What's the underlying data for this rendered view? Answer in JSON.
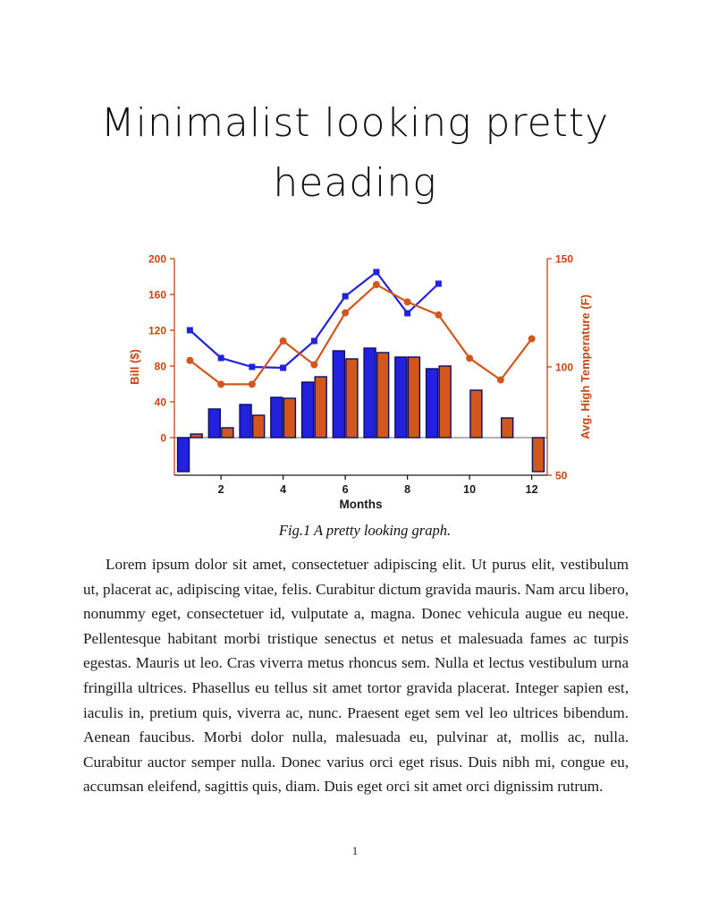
{
  "document": {
    "title_line1": "Minimalist looking pretty",
    "title_line2": "heading",
    "figure_caption": "Fig.1 A pretty looking graph.",
    "paragraph": "Lorem ipsum dolor sit amet, consectetuer adipiscing elit. Ut purus elit, vestibulum ut, placerat ac, adipiscing vitae, felis. Curabitur dictum gravida mauris. Nam arcu libero, nonummy eget, consectetuer id, vulputate a, magna. Donec vehicula augue eu neque. Pellentesque habitant morbi tristique senectus et netus et malesuada fames ac turpis egestas. Mauris ut leo. Cras viverra metus rhoncus sem. Nulla et lectus vestibulum urna fringilla ultrices. Phasellus eu tellus sit amet tortor gravida placerat. Integer sapien est, iaculis in, pretium quis, viverra ac, nunc. Praesent eget sem vel leo ultrices bibendum. Aenean faucibus. Morbi dolor nulla, malesuada eu, pulvinar at, mollis ac, nulla. Curabitur auctor semper nulla. Donec varius orci eget risus. Duis nibh mi, congue eu, accumsan eleifend, sagittis quis, diam. Duis eget orci sit amet orci dignissim rutrum.",
    "page_number": "1"
  },
  "chart_data": {
    "type": "bar",
    "description": "Grouped bar chart with two overlaid marker lines and dual y-axes",
    "title": "",
    "x_label": "Months",
    "months": [
      1,
      2,
      3,
      4,
      5,
      6,
      7,
      8,
      9,
      10,
      11,
      12
    ],
    "x_ticks": [
      2,
      4,
      6,
      8,
      10,
      12
    ],
    "x_range": [
      0.5,
      12.5
    ],
    "left_axis": {
      "label": "Bill ($)",
      "ticks": [
        0,
        40,
        80,
        120,
        160,
        200
      ],
      "range": [
        -42,
        200
      ],
      "color": "#C84514"
    },
    "right_axis": {
      "label": "Avg. High Temperature (F)",
      "ticks": [
        50,
        100,
        150
      ],
      "range": [
        50,
        150
      ],
      "color": "#C84514"
    },
    "series": [
      {
        "name": "electricity-bill-bars-blue",
        "type": "bar",
        "axis": "left",
        "color": "#2121DE",
        "edge_color": "#0D0D66",
        "values": [
          -38,
          32,
          37,
          45,
          62,
          97,
          100,
          90,
          77,
          null,
          null,
          null
        ]
      },
      {
        "name": "gas-bill-bars-orange",
        "type": "bar",
        "axis": "left",
        "color": "#D2571E",
        "edge_color": "#0D0D66",
        "values": [
          4,
          11,
          25,
          44,
          68,
          88,
          95,
          90,
          80,
          53,
          22,
          -38
        ]
      },
      {
        "name": "bill-line-blue",
        "type": "line",
        "axis": "left",
        "color": "#2121DE",
        "marker": "square",
        "values": [
          120,
          89,
          79,
          78,
          108,
          158,
          185,
          139,
          172,
          null,
          null,
          null
        ]
      },
      {
        "name": "temperature-line-orange",
        "type": "line",
        "axis": "right",
        "color": "#D2571E",
        "marker": "circle",
        "values": [
          103,
          92,
          92,
          112,
          101,
          125,
          138,
          130,
          124,
          104,
          94,
          113
        ]
      }
    ]
  }
}
